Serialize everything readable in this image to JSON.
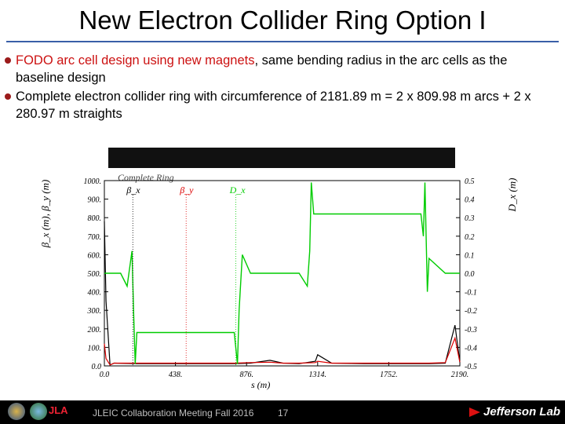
{
  "slide": {
    "title": "New Electron Collider Ring Option I",
    "bullet1_red": "FODO arc cell design using new magnets",
    "bullet1_rest": ", same bending radius in the arc cells as the baseline design",
    "bullet2": "Complete electron collider ring with circumference of 2181.89 m = 2 x 809.98 m arcs + 2 x 280.97 m straights"
  },
  "footer": {
    "meeting": "JLEIC Collaboration Meeting Fall 2016",
    "page": "17",
    "lab": "Jefferson Lab",
    "logo_text": "JLA"
  },
  "chart_data": {
    "type": "line",
    "title": "Complete Ring",
    "xlabel": "s (m)",
    "ylabel_left": "β_x (m), β_y (m)",
    "ylabel_right": "D_x (m)",
    "xlim": [
      0,
      2190
    ],
    "ylim_left": [
      0,
      1000
    ],
    "ylim_right": [
      -0.5,
      0.5
    ],
    "x_ticks": [
      "0.0",
      "438.",
      "876.",
      "1314.",
      "1752.",
      "2190."
    ],
    "y_ticks_left": [
      "1000.",
      "900.",
      "800.",
      "700.",
      "600.",
      "500.",
      "400.",
      "300.",
      "200.",
      "100.",
      "0.0"
    ],
    "y_ticks_right": [
      "0.5",
      "0.4",
      "0.3",
      "0.2",
      "0.1",
      "0.0",
      "-0.1",
      "-0.2",
      "-0.3",
      "-0.4",
      "-0.5"
    ],
    "legend": [
      "β_x",
      "β_y",
      "D_x"
    ],
    "colors": {
      "beta_x": "#000000",
      "beta_y": "#dd0000",
      "dispersion": "#00cc00"
    },
    "series": [
      {
        "name": "β_x",
        "x": [
          0,
          10,
          35,
          60,
          200,
          400,
          600,
          800,
          900,
          1020,
          1100,
          1200,
          1300,
          1314,
          1400,
          1600,
          1800,
          2000,
          2100,
          2160,
          2190
        ],
        "values": [
          780,
          350,
          5,
          15,
          12,
          12,
          12,
          12,
          15,
          30,
          15,
          12,
          25,
          60,
          15,
          12,
          12,
          12,
          15,
          220,
          20
        ]
      },
      {
        "name": "β_y",
        "x": [
          0,
          10,
          35,
          60,
          200,
          400,
          600,
          800,
          900,
          1020,
          1100,
          1200,
          1300,
          1314,
          1400,
          1600,
          1800,
          2000,
          2100,
          2160,
          2190
        ],
        "values": [
          120,
          40,
          5,
          15,
          15,
          15,
          15,
          15,
          18,
          20,
          15,
          15,
          18,
          25,
          15,
          15,
          15,
          15,
          18,
          150,
          20
        ]
      },
      {
        "name": "D_x",
        "x": [
          0,
          100,
          140,
          170,
          180,
          190,
          200,
          300,
          500,
          700,
          800,
          820,
          830,
          850,
          900,
          1000,
          1100,
          1200,
          1250,
          1265,
          1275,
          1290,
          1300,
          1400,
          1600,
          1800,
          1950,
          1965,
          1975,
          1990,
          2000,
          2100,
          2190
        ],
        "values": [
          0.0,
          0.0,
          -0.07,
          0.12,
          -0.2,
          -0.49,
          -0.32,
          -0.32,
          -0.32,
          -0.32,
          -0.32,
          -0.49,
          -0.2,
          0.1,
          0.0,
          0.0,
          0.0,
          0.0,
          -0.07,
          0.12,
          0.49,
          0.32,
          0.32,
          0.32,
          0.32,
          0.32,
          0.32,
          0.2,
          0.49,
          -0.1,
          0.08,
          0.0,
          0.0
        ]
      }
    ]
  }
}
